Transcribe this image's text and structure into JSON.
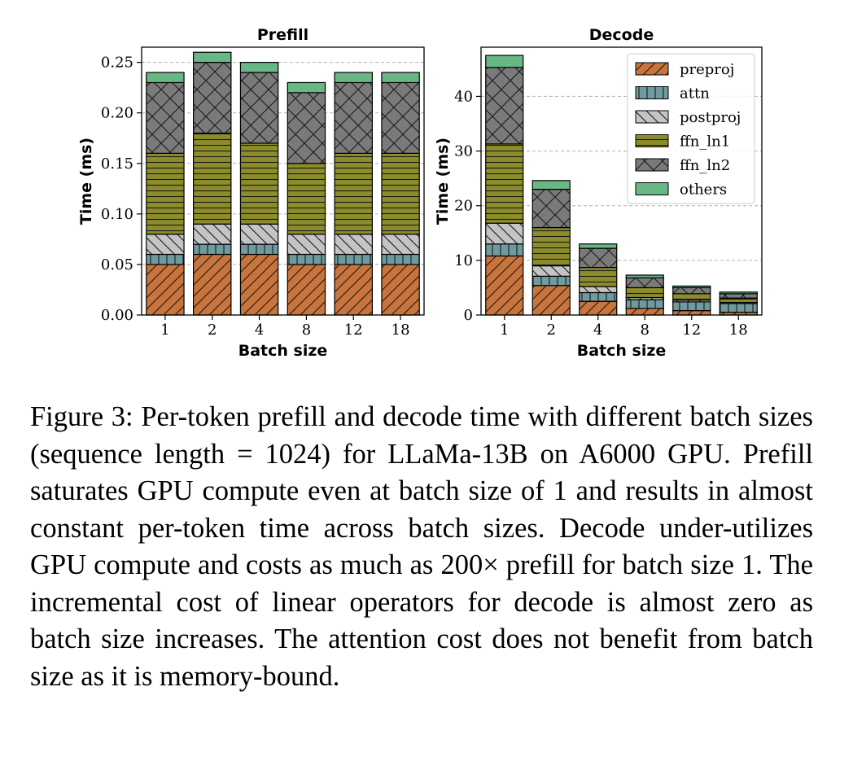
{
  "caption": "Figure 3: Per-token prefill and decode time with different batch sizes (sequence length = 1024) for LLaMa-13B on A6000 GPU. Prefill saturates GPU compute even at batch size of 1 and results in almost constant per-token time across batch sizes. Decode under-utilizes GPU compute and costs as much as 200× prefill for batch size 1. The incremental cost of linear operators for decode is almost zero as batch size increases. The attention cost does not benefit from batch size as it is memory-bound.",
  "colors": {
    "preproj": "#c8743c",
    "attn": "#6f9a9e",
    "postproj": "#c4c4c4",
    "ffn_ln1": "#8c8c2a",
    "ffn_ln2": "#7a7a7a",
    "others": "#69b784"
  },
  "chart_data": [
    {
      "type": "bar",
      "stacked": true,
      "title": "Prefill",
      "xlabel": "Batch size",
      "ylabel": "Time (ms)",
      "categories": [
        "1",
        "2",
        "4",
        "8",
        "12",
        "18"
      ],
      "ylim": [
        0,
        0.265
      ],
      "yticks": [
        "0.00",
        "0.05",
        "0.10",
        "0.15",
        "0.20",
        "0.25"
      ],
      "grid": true,
      "series": [
        {
          "name": "preproj",
          "values": [
            0.05,
            0.06,
            0.06,
            0.05,
            0.05,
            0.05
          ]
        },
        {
          "name": "attn",
          "values": [
            0.01,
            0.01,
            0.01,
            0.01,
            0.01,
            0.01
          ]
        },
        {
          "name": "postproj",
          "values": [
            0.02,
            0.02,
            0.02,
            0.02,
            0.02,
            0.02
          ]
        },
        {
          "name": "ffn_ln1",
          "values": [
            0.08,
            0.09,
            0.08,
            0.07,
            0.08,
            0.08
          ]
        },
        {
          "name": "ffn_ln2",
          "values": [
            0.07,
            0.07,
            0.07,
            0.07,
            0.07,
            0.07
          ]
        },
        {
          "name": "others",
          "values": [
            0.01,
            0.01,
            0.01,
            0.01,
            0.01,
            0.01
          ]
        }
      ]
    },
    {
      "type": "bar",
      "stacked": true,
      "title": "Decode",
      "xlabel": "Batch size",
      "ylabel": "Time (ms)",
      "categories": [
        "1",
        "2",
        "4",
        "8",
        "12",
        "18"
      ],
      "ylim": [
        0,
        49
      ],
      "yticks": [
        "0",
        "10",
        "20",
        "30",
        "40"
      ],
      "grid": true,
      "legend": "top-right",
      "series": [
        {
          "name": "preproj",
          "values": [
            10.8,
            5.4,
            2.5,
            1.2,
            0.8,
            0.5
          ]
        },
        {
          "name": "attn",
          "values": [
            2.2,
            1.7,
            1.6,
            1.6,
            1.6,
            1.6
          ]
        },
        {
          "name": "postproj",
          "values": [
            3.8,
            1.9,
            1.1,
            0.4,
            0.3,
            0.2
          ]
        },
        {
          "name": "ffn_ln1",
          "values": [
            14.5,
            7.0,
            3.5,
            1.8,
            1.2,
            0.8
          ]
        },
        {
          "name": "ffn_ln2",
          "values": [
            14.0,
            7.0,
            3.5,
            1.8,
            1.1,
            0.8
          ]
        },
        {
          "name": "others",
          "values": [
            2.2,
            1.6,
            0.8,
            0.5,
            0.3,
            0.3
          ]
        }
      ]
    }
  ]
}
